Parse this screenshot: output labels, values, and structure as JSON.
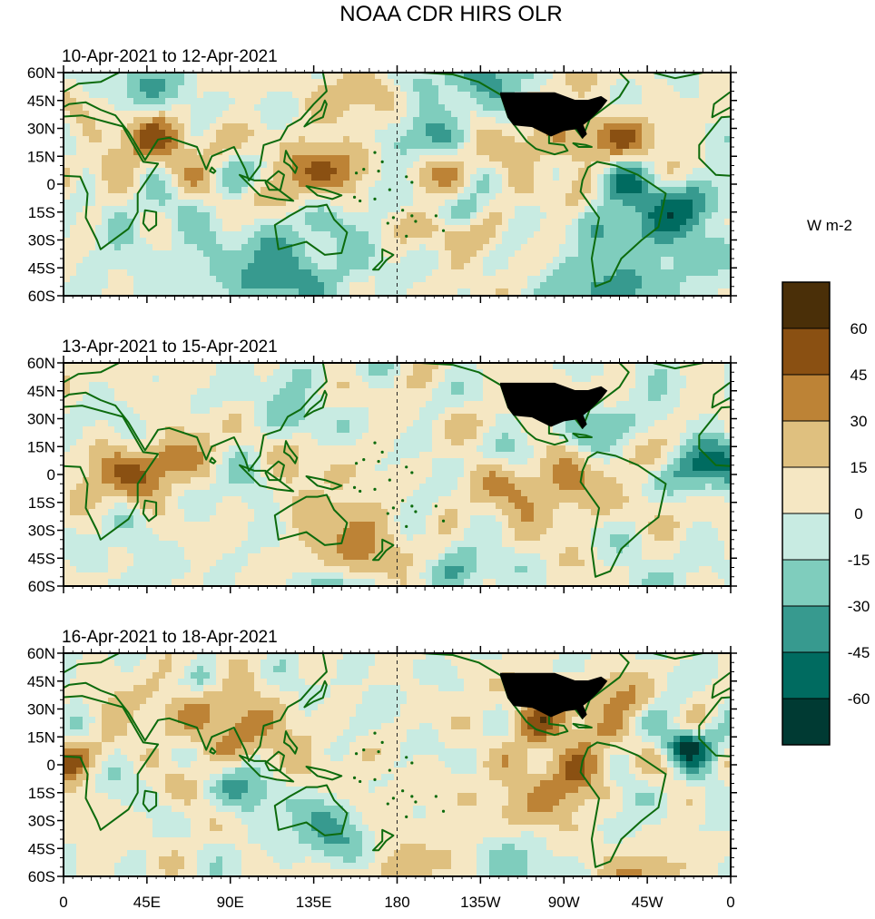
{
  "chart_data": {
    "type": "heatmap",
    "title": "NOAA CDR HIRS OLR",
    "units_label": "W m-2",
    "panels": [
      {
        "subtitle": "10-Apr-2021 to 12-Apr-2021"
      },
      {
        "subtitle": "13-Apr-2021 to 15-Apr-2021"
      },
      {
        "subtitle": "16-Apr-2021 to 18-Apr-2021"
      }
    ],
    "lat_ticks": [
      "60N",
      "45N",
      "30N",
      "15N",
      "0",
      "15S",
      "30S",
      "45S",
      "60S"
    ],
    "lon_ticks": [
      "0",
      "45E",
      "90E",
      "135E",
      "180",
      "135W",
      "90W",
      "45W",
      "0"
    ],
    "xlim": [
      0,
      360
    ],
    "ylim": [
      -60,
      60
    ],
    "colorbar": {
      "levels": [
        -60,
        -45,
        -30,
        -15,
        0,
        15,
        30,
        45,
        60
      ],
      "labels": [
        "60",
        "45",
        "30",
        "15",
        "0",
        "-15",
        "-30",
        "-45",
        "-60"
      ],
      "colors": [
        "#4a2f08",
        "#8a5012",
        "#bd8336",
        "#dfc07f",
        "#f5e7c3",
        "#c8ebe2",
        "#7fcdbd",
        "#379a8f",
        "#006b60",
        "#003a33"
      ]
    },
    "colors": {
      "land_outline": "#0d6b0d",
      "us_fill": "#000000"
    }
  }
}
